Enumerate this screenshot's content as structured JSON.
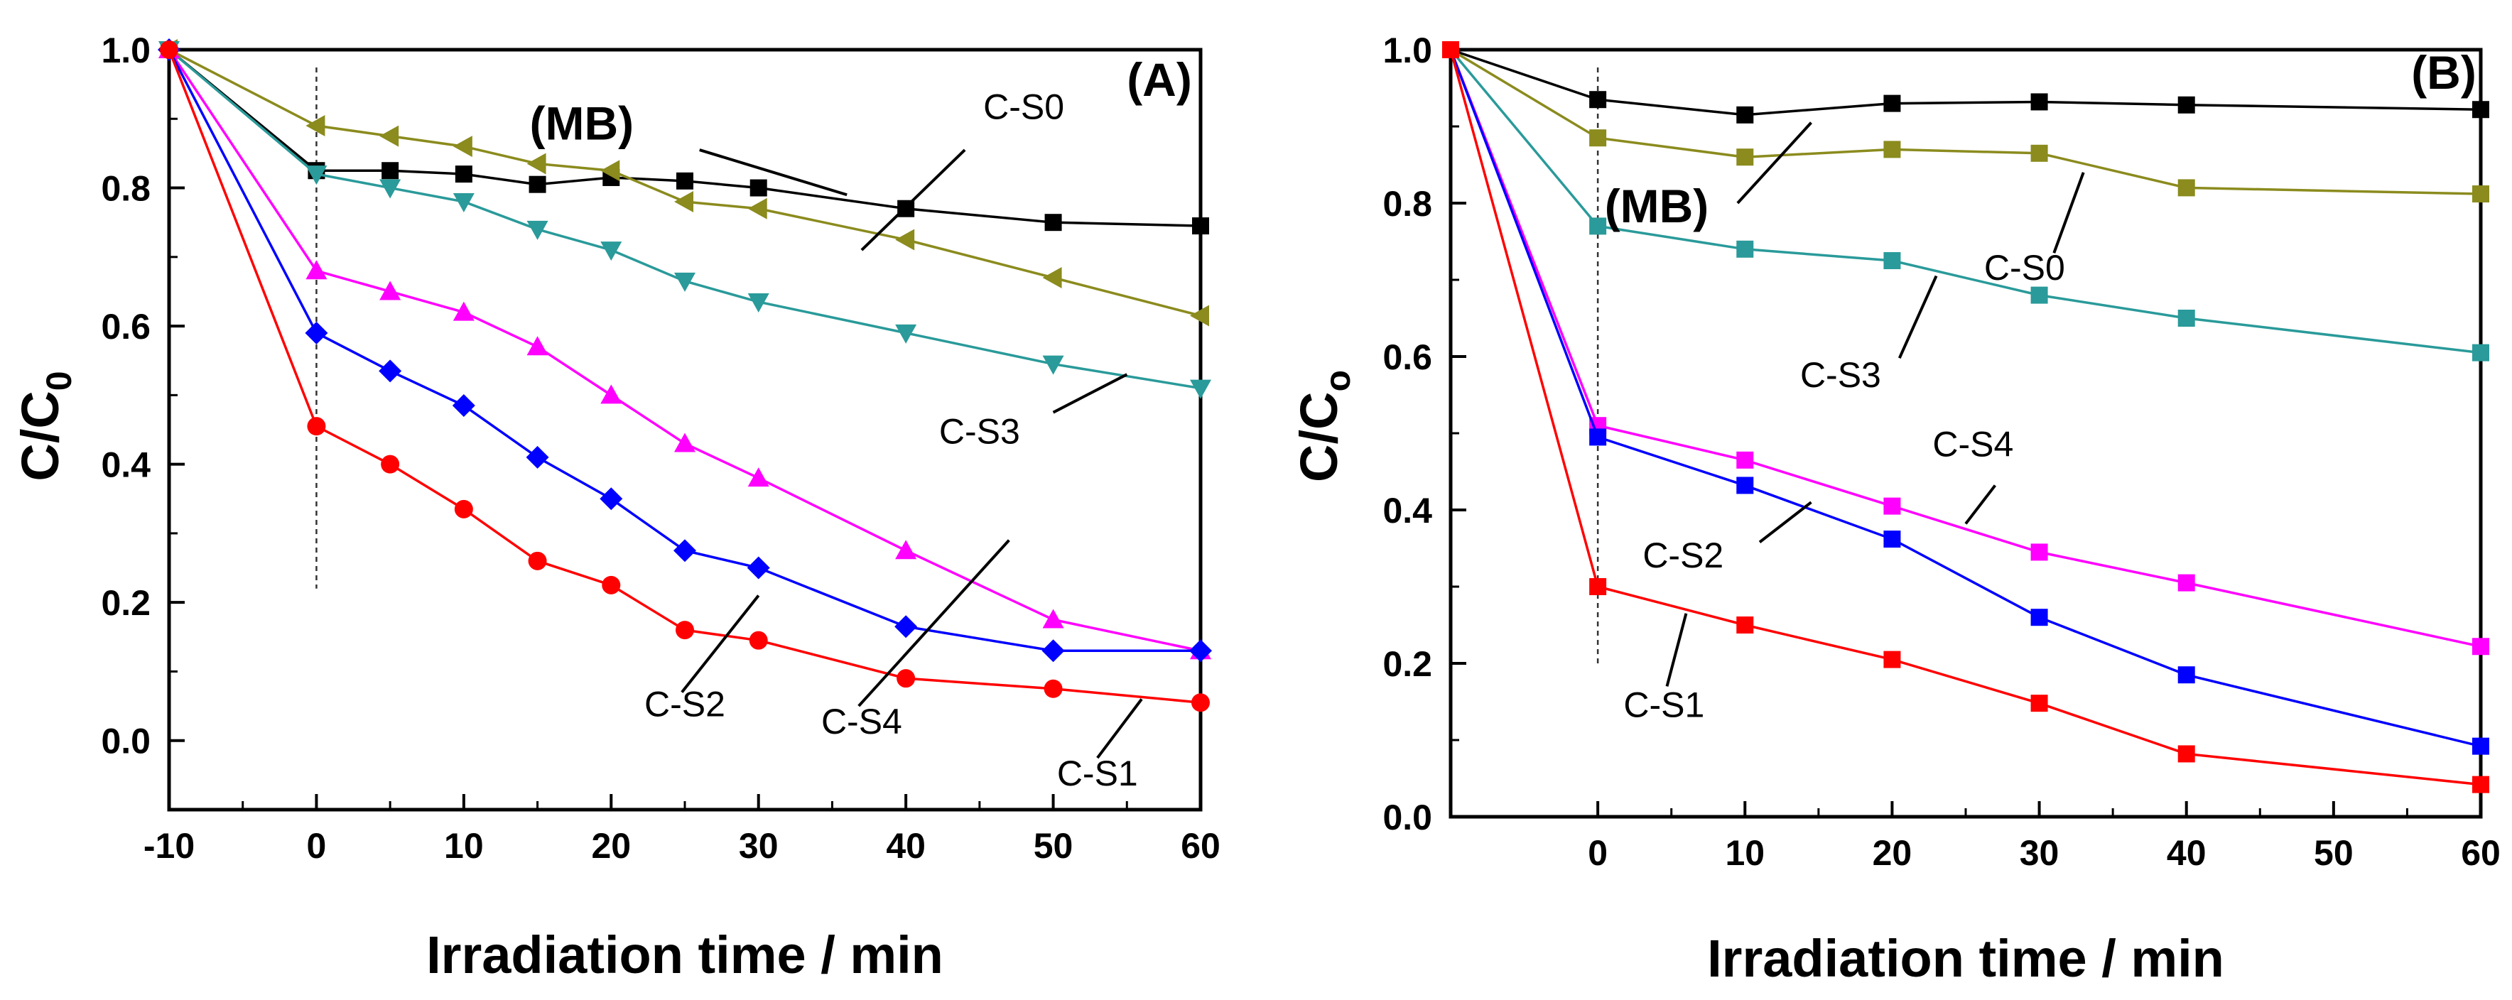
{
  "chart_data": [
    {
      "type": "line",
      "panel_label": "(A)",
      "xlabel": "Irradiation time / min",
      "ylabel_main": "C/C",
      "ylabel_sub": "0",
      "xlim": [
        -10,
        60
      ],
      "ylim": [
        -0.1,
        1.0
      ],
      "xticks": [
        -10,
        0,
        10,
        20,
        30,
        40,
        50,
        60
      ],
      "yticks": [
        0.0,
        0.2,
        0.4,
        0.6,
        0.8,
        1.0
      ],
      "ytick_labels": [
        "0.0",
        "0.2",
        "0.4",
        "0.6",
        "0.8",
        "1.0"
      ],
      "grid": false,
      "reference_line_x": 0,
      "series": [
        {
          "name": "(MB)",
          "color": "#000000",
          "marker": "square",
          "x": [
            -10,
            0,
            5,
            10,
            15,
            20,
            25,
            30,
            40,
            50,
            60
          ],
          "y": [
            1.0,
            0.825,
            0.825,
            0.82,
            0.805,
            0.815,
            0.81,
            0.8,
            0.77,
            0.75,
            0.745
          ]
        },
        {
          "name": "C-S0",
          "color": "#8b8b1e",
          "marker": "triangle-left",
          "x": [
            -10,
            0,
            5,
            10,
            15,
            20,
            25,
            30,
            40,
            50,
            60
          ],
          "y": [
            1.0,
            0.89,
            0.875,
            0.86,
            0.835,
            0.825,
            0.78,
            0.77,
            0.725,
            0.67,
            0.615
          ]
        },
        {
          "name": "C-S3",
          "color": "#2a9a9a",
          "marker": "triangle-down",
          "x": [
            -10,
            0,
            5,
            10,
            15,
            20,
            25,
            30,
            40,
            50,
            60
          ],
          "y": [
            1.0,
            0.82,
            0.8,
            0.78,
            0.74,
            0.71,
            0.665,
            0.635,
            0.59,
            0.545,
            0.51
          ]
        },
        {
          "name": "C-S4",
          "color": "#ff00ff",
          "marker": "triangle-up",
          "x": [
            -10,
            0,
            5,
            10,
            15,
            20,
            25,
            30,
            40,
            50,
            60
          ],
          "y": [
            1.0,
            0.68,
            0.65,
            0.62,
            0.57,
            0.5,
            0.43,
            0.38,
            0.275,
            0.175,
            0.13
          ]
        },
        {
          "name": "C-S2",
          "color": "#0000ff",
          "marker": "diamond",
          "x": [
            -10,
            0,
            5,
            10,
            15,
            20,
            25,
            30,
            40,
            50,
            60
          ],
          "y": [
            1.0,
            0.59,
            0.535,
            0.485,
            0.41,
            0.35,
            0.275,
            0.25,
            0.165,
            0.13,
            0.13
          ]
        },
        {
          "name": "C-S1",
          "color": "#ff0000",
          "marker": "circle",
          "x": [
            -10,
            0,
            5,
            10,
            15,
            20,
            25,
            30,
            40,
            50,
            60
          ],
          "y": [
            1.0,
            0.455,
            0.4,
            0.335,
            0.26,
            0.225,
            0.16,
            0.145,
            0.09,
            0.075,
            0.055
          ]
        }
      ],
      "annotations": [
        {
          "text": "(MB)",
          "bold": true,
          "tx": 18,
          "ty": 0.87,
          "lx1": 26,
          "ly1": 0.855,
          "lx2": 36,
          "ly2": 0.79
        },
        {
          "text": "C-S0",
          "bold": false,
          "tx": 48,
          "ty": 0.9,
          "lx1": 44,
          "ly1": 0.855,
          "lx2": 37,
          "ly2": 0.71
        },
        {
          "text": "C-S3",
          "bold": false,
          "tx": 45,
          "ty": 0.43,
          "lx1": 50,
          "ly1": 0.475,
          "lx2": 55,
          "ly2": 0.53
        },
        {
          "text": "C-S2",
          "bold": false,
          "tx": 25,
          "ty": 0.035,
          "lx1": 24.8,
          "ly1": 0.07,
          "lx2": 30,
          "ly2": 0.21
        },
        {
          "text": "C-S4",
          "bold": false,
          "tx": 37,
          "ty": 0.01,
          "lx1": 36.8,
          "ly1": 0.05,
          "lx2": 47,
          "ly2": 0.29
        },
        {
          "text": "C-S1",
          "bold": false,
          "tx": 53,
          "ty": -0.065,
          "lx1": 53,
          "ly1": -0.025,
          "lx2": 56,
          "ly2": 0.06
        }
      ]
    },
    {
      "type": "line",
      "panel_label": "(B)",
      "xlabel": "Irradiation time / min",
      "ylabel_main": "C/C",
      "ylabel_sub": "o",
      "xlim": [
        -10,
        60
      ],
      "ylim": [
        0.0,
        1.0
      ],
      "xticks": [
        0,
        10,
        20,
        30,
        40,
        50,
        60
      ],
      "yticks": [
        0.0,
        0.2,
        0.4,
        0.6,
        0.8,
        1.0
      ],
      "ytick_labels": [
        "0.0",
        "0.2",
        "0.4",
        "0.6",
        "0.8",
        "1.0"
      ],
      "grid": false,
      "reference_line_x": 0,
      "series": [
        {
          "name": "(MB)",
          "color": "#000000",
          "marker": "square",
          "x": [
            -10,
            0,
            10,
            20,
            30,
            40,
            60
          ],
          "y": [
            1.0,
            0.935,
            0.915,
            0.93,
            0.932,
            0.928,
            0.922
          ]
        },
        {
          "name": "C-S0",
          "color": "#8b8b1e",
          "marker": "square",
          "x": [
            -10,
            0,
            10,
            20,
            30,
            40,
            60
          ],
          "y": [
            1.0,
            0.885,
            0.86,
            0.87,
            0.865,
            0.82,
            0.812
          ]
        },
        {
          "name": "C-S3",
          "color": "#2a9a9a",
          "marker": "square",
          "x": [
            -10,
            0,
            10,
            20,
            30,
            40,
            60
          ],
          "y": [
            1.0,
            0.77,
            0.74,
            0.725,
            0.68,
            0.65,
            0.605
          ]
        },
        {
          "name": "C-S4",
          "color": "#ff00ff",
          "marker": "square",
          "x": [
            -10,
            0,
            10,
            20,
            30,
            40,
            60
          ],
          "y": [
            1.0,
            0.51,
            0.465,
            0.405,
            0.345,
            0.305,
            0.222
          ]
        },
        {
          "name": "C-S2",
          "color": "#0000ff",
          "marker": "square",
          "x": [
            -10,
            0,
            10,
            20,
            30,
            40,
            60
          ],
          "y": [
            1.0,
            0.495,
            0.432,
            0.362,
            0.26,
            0.185,
            0.092
          ]
        },
        {
          "name": "C-S1",
          "color": "#ff0000",
          "marker": "square",
          "x": [
            -10,
            0,
            10,
            20,
            30,
            40,
            60
          ],
          "y": [
            1.0,
            0.3,
            0.25,
            0.205,
            0.148,
            0.082,
            0.042
          ]
        }
      ],
      "annotations": [
        {
          "text": "(MB)",
          "bold": true,
          "tx": 4,
          "ty": 0.775,
          "lx1": 9.5,
          "ly1": 0.8,
          "lx2": 14.5,
          "ly2": 0.905
        },
        {
          "text": "C-S0",
          "bold": false,
          "tx": 29,
          "ty": 0.7,
          "lx1": 31,
          "ly1": 0.735,
          "lx2": 33,
          "ly2": 0.84
        },
        {
          "text": "C-S3",
          "bold": false,
          "tx": 16.5,
          "ty": 0.56,
          "lx1": 20.5,
          "ly1": 0.598,
          "lx2": 23,
          "ly2": 0.705
        },
        {
          "text": "C-S4",
          "bold": false,
          "tx": 25.5,
          "ty": 0.47,
          "lx1": 27,
          "ly1": 0.432,
          "lx2": 25,
          "ly2": 0.382
        },
        {
          "text": "C-S2",
          "bold": false,
          "tx": 5.8,
          "ty": 0.325,
          "lx1": 11,
          "ly1": 0.358,
          "lx2": 14.5,
          "ly2": 0.41
        },
        {
          "text": "C-S1",
          "bold": false,
          "tx": 4.5,
          "ty": 0.13,
          "lx1": 4.7,
          "ly1": 0.17,
          "lx2": 6,
          "ly2": 0.265
        }
      ]
    }
  ]
}
